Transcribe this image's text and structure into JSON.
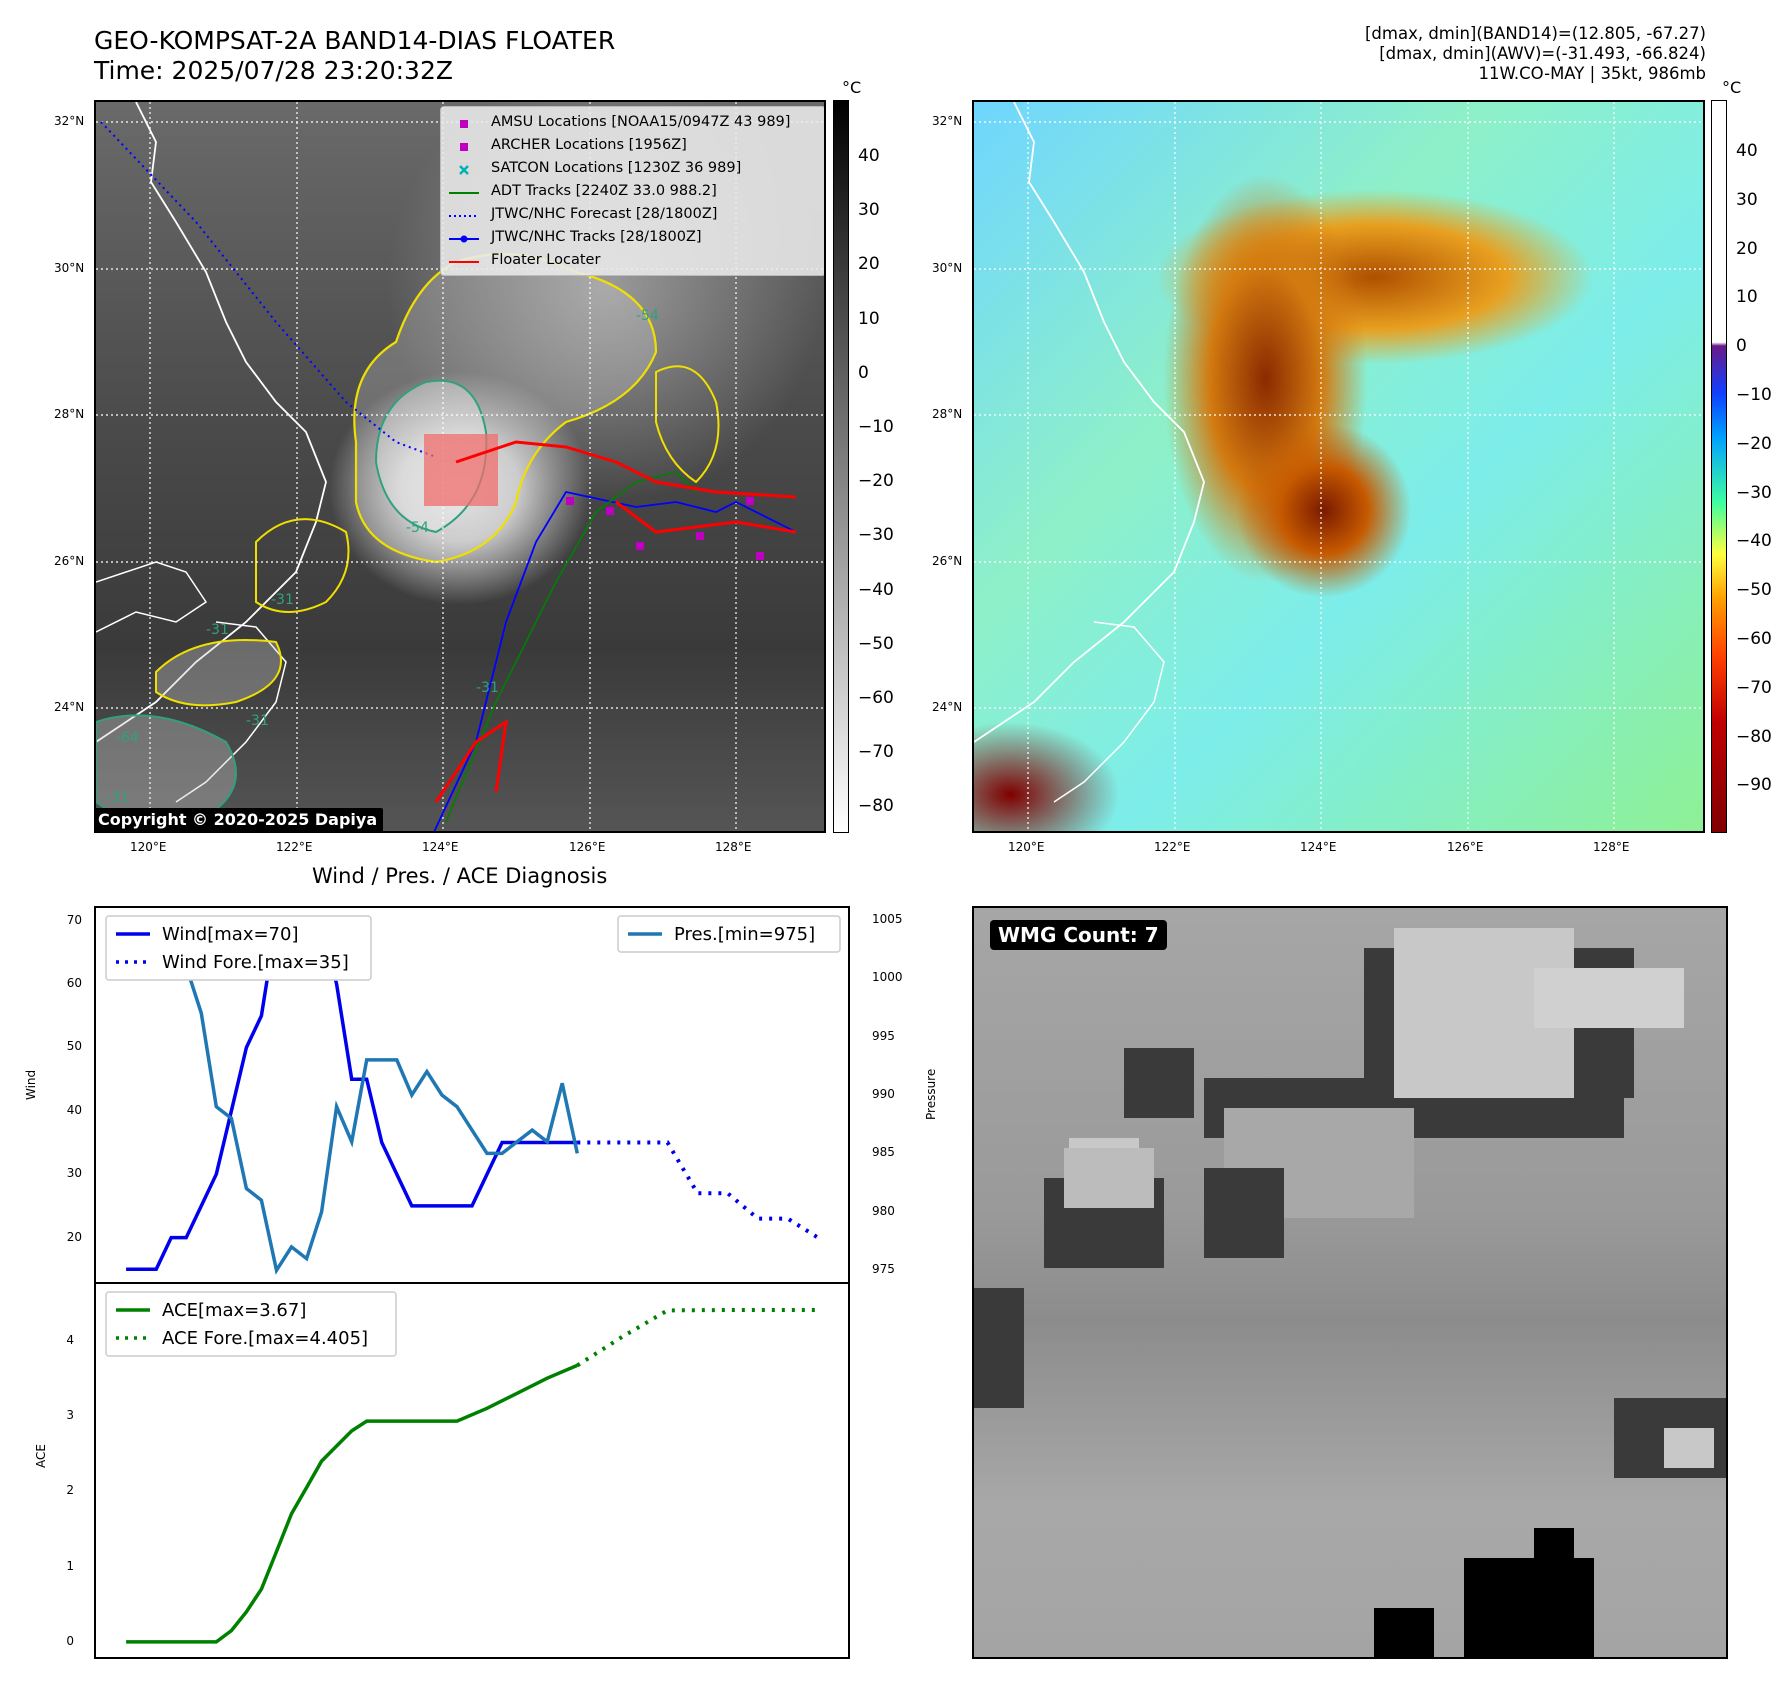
{
  "header": {
    "title_line1": "GEO-KOMPSAT-2A BAND14-DIAS FLOATER",
    "title_line2": "Time: 2025/07/28 23:20:32Z",
    "stats_line1": "[dmax, dmin](BAND14)=(12.805, -67.27)",
    "stats_line2": "[dmax, dmin](AWV)=(-31.493, -66.824)",
    "stats_line3": "11W.CO-MAY | 35kt, 986mb"
  },
  "map": {
    "lat_labels": [
      "32°N",
      "30°N",
      "28°N",
      "26°N",
      "24°N"
    ],
    "lon_labels": [
      "120°E",
      "122°E",
      "124°E",
      "126°E",
      "128°E"
    ],
    "contour_labels": [
      "-54",
      "-31",
      "-31",
      "-31",
      "-31",
      "-64",
      "-31",
      "-54"
    ],
    "copyright": "Copyright © 2020-2025 Dapiya",
    "colorbar1": {
      "unit": "°C",
      "ticks": [
        "40",
        "30",
        "20",
        "10",
        "0",
        "−10",
        "−20",
        "−30",
        "−40",
        "−50",
        "−60",
        "−70",
        "−80"
      ]
    },
    "colorbar2": {
      "unit": "°C",
      "ticks": [
        "40",
        "30",
        "20",
        "10",
        "0",
        "−10",
        "−20",
        "−30",
        "−40",
        "−50",
        "−60",
        "−70",
        "−80",
        "−90"
      ]
    }
  },
  "legend": {
    "items": [
      {
        "label": "AMSU Locations [NOAA15/0947Z 43 989]",
        "color": "#c000c0",
        "kind": "square"
      },
      {
        "label": "ARCHER Locations [1956Z]",
        "color": "#c000c0",
        "kind": "square"
      },
      {
        "label": "SATCON Locations [1230Z 36 989]",
        "color": "#00b0b0",
        "kind": "x"
      },
      {
        "label": "ADT Tracks [2240Z 33.0 988.2]",
        "color": "#008000",
        "kind": "line"
      },
      {
        "label": "JTWC/NHC Forecast [28/1800Z]",
        "color": "#0000ff",
        "kind": "dotted"
      },
      {
        "label": "JTWC/NHC Tracks [28/1800Z]",
        "color": "#0000ff",
        "kind": "linedot"
      },
      {
        "label": "Floater Locater",
        "color": "#ff0000",
        "kind": "line"
      }
    ]
  },
  "diagnosis": {
    "title": "Wind / Pres. / ACE Diagnosis",
    "wind_ylabel": "Wind",
    "pres_ylabel": "Pressure",
    "ace_ylabel": "ACE",
    "wind_legend": [
      "Wind[max=70]",
      "Wind Fore.[max=35]"
    ],
    "pres_legend": "Pres.[min=975]",
    "ace_legend": [
      "ACE[max=3.67]",
      "ACE Fore.[max=4.405]"
    ],
    "wind_yticks": [
      "70",
      "60",
      "50",
      "40",
      "30",
      "20"
    ],
    "pres_yticks": [
      "1005",
      "1000",
      "995",
      "990",
      "985",
      "980",
      "975"
    ],
    "ace_yticks": [
      "4",
      "3",
      "2",
      "1",
      "0"
    ]
  },
  "wmg": {
    "label": "WMG Count: 7"
  },
  "colors": {
    "wind": "#0000ee",
    "pres": "#1f77b4",
    "ace": "#008000"
  },
  "chart_data": [
    {
      "type": "line",
      "title": "Wind / Pres. / ACE Diagnosis",
      "ylabel": "Wind",
      "ylim": [
        13,
        72
      ],
      "series": [
        {
          "name": "Wind[max=70]",
          "x": [
            0,
            1,
            2,
            3,
            4,
            5,
            6,
            7,
            8,
            9,
            10,
            11,
            12,
            13,
            14,
            15,
            16,
            17,
            18,
            19,
            20,
            21,
            22,
            23,
            24,
            25,
            26,
            27,
            28,
            29,
            30
          ],
          "values": [
            15,
            15,
            15,
            20,
            20,
            25,
            30,
            40,
            50,
            55,
            70,
            70,
            70,
            70,
            60,
            45,
            45,
            35,
            30,
            25,
            25,
            25,
            25,
            25,
            30,
            35,
            35,
            35,
            35,
            35,
            35
          ]
        },
        {
          "name": "Wind Fore.[max=35]",
          "x": [
            30,
            32,
            34,
            36,
            38,
            40,
            42,
            44,
            46
          ],
          "values": [
            35,
            35,
            35,
            35,
            27,
            27,
            23,
            23,
            20
          ]
        }
      ]
    },
    {
      "type": "line",
      "ylabel": "Pressure",
      "ylim": [
        974,
        1006
      ],
      "series": [
        {
          "name": "Pres.[min=975]",
          "x": [
            0,
            1,
            2,
            3,
            4,
            5,
            6,
            7,
            8,
            9,
            10,
            11,
            12,
            13,
            14,
            15,
            16,
            17,
            18,
            19,
            20,
            21,
            22,
            23,
            24,
            25,
            26,
            27,
            28,
            29,
            30
          ],
          "values": [
            1005,
            1005,
            1005,
            1003,
            1001,
            997,
            989,
            988,
            982,
            981,
            975,
            977,
            976,
            980,
            989,
            986,
            993,
            993,
            993,
            990,
            992,
            990,
            989,
            987,
            985,
            985,
            986,
            987,
            986,
            991,
            985
          ]
        }
      ]
    },
    {
      "type": "line",
      "ylabel": "ACE",
      "ylim": [
        -0.2,
        4.75
      ],
      "series": [
        {
          "name": "ACE[max=3.67]",
          "x": [
            0,
            2,
            4,
            6,
            7,
            8,
            9,
            10,
            11,
            12,
            13,
            14,
            15,
            16,
            18,
            20,
            22,
            24,
            26,
            28,
            30
          ],
          "values": [
            0,
            0,
            0,
            0,
            0.15,
            0.4,
            0.7,
            1.2,
            1.7,
            2.05,
            2.4,
            2.6,
            2.8,
            2.93,
            2.93,
            2.93,
            2.93,
            3.1,
            3.3,
            3.5,
            3.67
          ]
        },
        {
          "name": "ACE Fore.[max=4.405]",
          "x": [
            30,
            33,
            36,
            40,
            44,
            46
          ],
          "values": [
            3.67,
            4.05,
            4.4,
            4.405,
            4.405,
            4.405
          ]
        }
      ]
    }
  ]
}
